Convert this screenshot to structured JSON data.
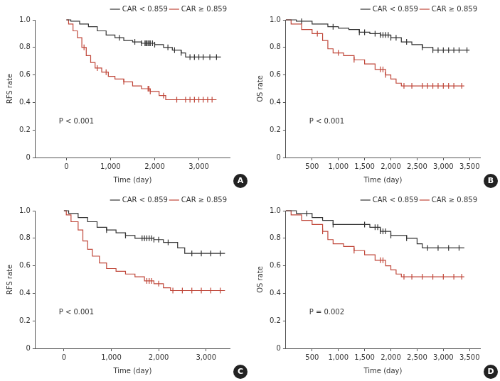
{
  "chart_data": [
    {
      "type": "line",
      "panel": "A",
      "y_label": "RFS rate",
      "x_label": "Time (day)",
      "annotation": "P < 0.001",
      "xlim": [
        -700,
        3700
      ],
      "xticks": [
        0,
        {
          "value": 1000,
          "label": "1,000"
        },
        {
          "value": 2000,
          "label": "2,000"
        },
        {
          "value": 3000,
          "label": "3,000"
        }
      ],
      "ylim": [
        0,
        1
      ],
      "yticks": [
        0,
        0.2,
        0.4,
        0.6,
        0.8,
        {
          "value": 1,
          "label": "1.0"
        }
      ],
      "grid": false,
      "legend": "upper right",
      "line_style": "steps",
      "marker": "tick",
      "series": [
        {
          "name": "CAR < 0.859",
          "color": "#333333",
          "x": [
            0,
            100,
            300,
            500,
            700,
            900,
            1100,
            1300,
            1500,
            1700,
            2000,
            2200,
            2400,
            2600,
            2700,
            3500
          ],
          "values": [
            1.0,
            0.99,
            0.97,
            0.95,
            0.92,
            0.89,
            0.87,
            0.85,
            0.84,
            0.83,
            0.82,
            0.8,
            0.78,
            0.76,
            0.73,
            0.73
          ],
          "censored": [
            1200,
            1550,
            1700,
            1780,
            1800,
            1820,
            1850,
            1880,
            1900,
            1950,
            2000,
            2300,
            2450,
            2600,
            2800,
            2900,
            3000,
            3100,
            3250,
            3400
          ]
        },
        {
          "name": "CAR ≥ 0.859",
          "color": "#c0473a",
          "x": [
            0,
            50,
            150,
            250,
            350,
            450,
            550,
            650,
            800,
            950,
            1100,
            1300,
            1500,
            1700,
            1900,
            2100,
            2250,
            3400
          ],
          "values": [
            1.0,
            0.97,
            0.92,
            0.87,
            0.8,
            0.74,
            0.69,
            0.65,
            0.62,
            0.59,
            0.57,
            0.55,
            0.52,
            0.5,
            0.48,
            0.45,
            0.42,
            0.42
          ],
          "censored": [
            400,
            700,
            900,
            1300,
            1850,
            1870,
            1900,
            2200,
            2500,
            2700,
            2800,
            2900,
            3000,
            3100,
            3200,
            3300
          ]
        }
      ]
    },
    {
      "type": "line",
      "panel": "B",
      "y_label": "OS rate",
      "x_label": "Time (day)",
      "annotation": "P < 0.001",
      "xlim": [
        0,
        3700
      ],
      "xticks": [
        500,
        {
          "value": 1000,
          "label": "1,000"
        },
        {
          "value": 1500,
          "label": "1,500"
        },
        {
          "value": 2000,
          "label": "2,000"
        },
        {
          "value": 2500,
          "label": "2,500"
        },
        {
          "value": 3000,
          "label": "3,000"
        },
        {
          "value": 3500,
          "label": "3,500"
        }
      ],
      "ylim": [
        0,
        1
      ],
      "yticks": [
        0,
        0.2,
        0.4,
        0.6,
        0.8,
        {
          "value": 1,
          "label": "1.0"
        }
      ],
      "grid": false,
      "legend": "upper right",
      "line_style": "steps",
      "marker": "tick",
      "series": [
        {
          "name": "CAR < 0.859",
          "color": "#333333",
          "x": [
            0,
            200,
            500,
            800,
            1000,
            1200,
            1400,
            1600,
            1800,
            2000,
            2200,
            2400,
            2600,
            2800,
            3500
          ],
          "values": [
            1.0,
            0.99,
            0.97,
            0.95,
            0.94,
            0.93,
            0.91,
            0.9,
            0.89,
            0.87,
            0.84,
            0.82,
            0.8,
            0.78,
            0.78
          ],
          "censored": [
            300,
            900,
            1400,
            1500,
            1700,
            1800,
            1850,
            1900,
            1950,
            2000,
            2100,
            2300,
            2600,
            2800,
            2900,
            3000,
            3100,
            3200,
            3300,
            3450
          ]
        },
        {
          "name": "CAR ≥ 0.859",
          "color": "#c0473a",
          "x": [
            0,
            100,
            300,
            500,
            700,
            800,
            900,
            1100,
            1300,
            1500,
            1700,
            1900,
            2000,
            2100,
            2200,
            3400
          ],
          "values": [
            1.0,
            0.97,
            0.93,
            0.9,
            0.85,
            0.79,
            0.76,
            0.74,
            0.71,
            0.68,
            0.64,
            0.6,
            0.57,
            0.54,
            0.52,
            0.52
          ],
          "censored": [
            600,
            1000,
            1300,
            1800,
            1850,
            1900,
            2250,
            2400,
            2600,
            2700,
            2800,
            2900,
            3000,
            3100,
            3200,
            3350
          ]
        }
      ]
    },
    {
      "type": "line",
      "panel": "C",
      "y_label": "RFS rate",
      "x_label": "Time (day)",
      "annotation": "P < 0.001",
      "xlim": [
        -600,
        3500
      ],
      "xticks": [
        0,
        {
          "value": 1000,
          "label": "1,000"
        },
        {
          "value": 2000,
          "label": "2,000"
        },
        {
          "value": 3000,
          "label": "3,000"
        }
      ],
      "ylim": [
        0,
        1
      ],
      "yticks": [
        0,
        0.2,
        0.4,
        0.6,
        0.8,
        {
          "value": 1,
          "label": "1.0"
        }
      ],
      "grid": false,
      "legend": "upper right",
      "line_style": "steps",
      "marker": "tick",
      "series": [
        {
          "name": "CAR < 0.859",
          "color": "#333333",
          "x": [
            0,
            100,
            300,
            500,
            700,
            900,
            1100,
            1300,
            1500,
            1900,
            2100,
            2400,
            2550,
            3400
          ],
          "values": [
            1.0,
            0.98,
            0.95,
            0.92,
            0.88,
            0.86,
            0.84,
            0.82,
            0.8,
            0.79,
            0.77,
            0.73,
            0.69,
            0.69
          ],
          "censored": [
            900,
            1300,
            1650,
            1700,
            1750,
            1800,
            1850,
            1900,
            2000,
            2200,
            2700,
            2900,
            3100,
            3300
          ]
        },
        {
          "name": "CAR ≥ 0.859",
          "color": "#c0473a",
          "x": [
            0,
            50,
            150,
            300,
            400,
            500,
            600,
            750,
            900,
            1100,
            1300,
            1500,
            1700,
            1900,
            2100,
            2250,
            3400
          ],
          "values": [
            1.0,
            0.97,
            0.92,
            0.86,
            0.78,
            0.72,
            0.67,
            0.62,
            0.58,
            0.56,
            0.54,
            0.52,
            0.49,
            0.47,
            0.44,
            0.42,
            0.42
          ],
          "censored": [
            1750,
            1800,
            1850,
            2000,
            2300,
            2500,
            2700,
            2900,
            3100,
            3300
          ]
        }
      ]
    },
    {
      "type": "line",
      "panel": "D",
      "y_label": "OS rate",
      "x_label": "Time (day)",
      "annotation": "P = 0.002",
      "xlim": [
        0,
        3700
      ],
      "xticks": [
        500,
        {
          "value": 1000,
          "label": "1,000"
        },
        {
          "value": 1500,
          "label": "1,500"
        },
        {
          "value": 2000,
          "label": "2,000"
        },
        {
          "value": 2500,
          "label": "2,500"
        },
        {
          "value": 3000,
          "label": "3,000"
        },
        {
          "value": 3500,
          "label": "3,500"
        }
      ],
      "ylim": [
        0,
        1
      ],
      "yticks": [
        0,
        0.2,
        0.4,
        0.6,
        0.8,
        {
          "value": 1,
          "label": "1.0"
        }
      ],
      "grid": false,
      "legend": "upper right",
      "line_style": "steps",
      "marker": "tick",
      "series": [
        {
          "name": "CAR < 0.859",
          "color": "#333333",
          "x": [
            0,
            200,
            500,
            700,
            900,
            1600,
            1800,
            2000,
            2300,
            2500,
            2600,
            3400
          ],
          "values": [
            1.0,
            0.98,
            0.95,
            0.93,
            0.9,
            0.88,
            0.85,
            0.82,
            0.8,
            0.76,
            0.73,
            0.73
          ],
          "censored": [
            400,
            900,
            1500,
            1700,
            1750,
            1800,
            1850,
            1900,
            2000,
            2300,
            2700,
            2900,
            3100,
            3300
          ]
        },
        {
          "name": "CAR ≥ 0.859",
          "color": "#c0473a",
          "x": [
            0,
            100,
            300,
            500,
            700,
            800,
            900,
            1100,
            1300,
            1500,
            1700,
            1900,
            2000,
            2100,
            2200,
            3400
          ],
          "values": [
            1.0,
            0.97,
            0.93,
            0.9,
            0.85,
            0.79,
            0.76,
            0.74,
            0.71,
            0.68,
            0.64,
            0.6,
            0.57,
            0.54,
            0.52,
            0.52
          ],
          "censored": [
            700,
            1300,
            1800,
            1850,
            2250,
            2400,
            2600,
            2800,
            3000,
            3200,
            3350
          ]
        }
      ]
    }
  ]
}
